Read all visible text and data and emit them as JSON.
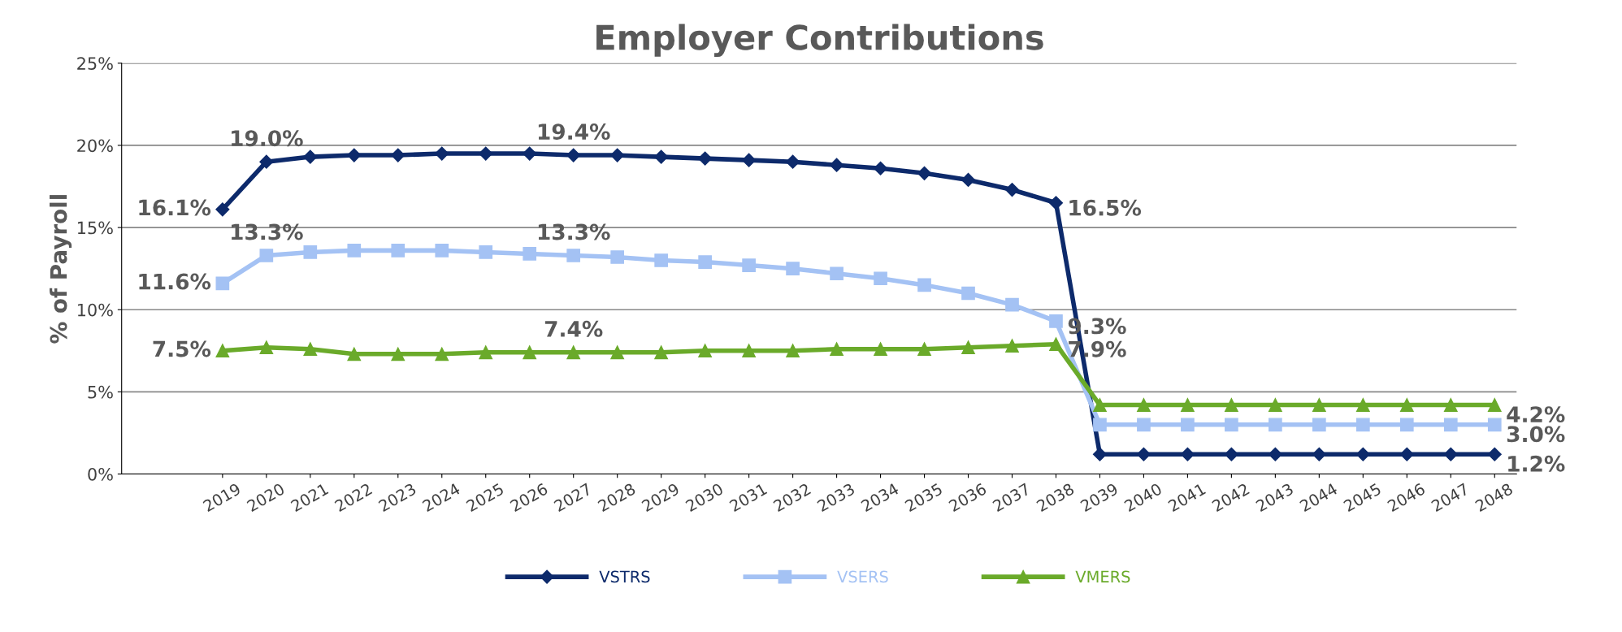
{
  "chart_data": {
    "type": "line",
    "title": "Employer Contributions",
    "ylabel": "% of Payroll",
    "categories": [
      "2019",
      "2020",
      "2021",
      "2022",
      "2023",
      "2024",
      "2025",
      "2026",
      "2027",
      "2028",
      "2029",
      "2030",
      "2031",
      "2032",
      "2033",
      "2034",
      "2035",
      "2036",
      "2037",
      "2038",
      "2039",
      "2040",
      "2041",
      "2042",
      "2043",
      "2044",
      "2045",
      "2046",
      "2047",
      "2048"
    ],
    "series": [
      {
        "name": "VSTRS",
        "color": "#0d2a6b",
        "marker": "diamond",
        "values": [
          16.1,
          19.0,
          19.3,
          19.4,
          19.4,
          19.5,
          19.5,
          19.5,
          19.4,
          19.4,
          19.3,
          19.2,
          19.1,
          19.0,
          18.8,
          18.6,
          18.3,
          17.9,
          17.3,
          16.5,
          1.2,
          1.2,
          1.2,
          1.2,
          1.2,
          1.2,
          1.2,
          1.2,
          1.2,
          1.2
        ],
        "value_labels": [
          "16.1%",
          "19.0%",
          null,
          null,
          null,
          null,
          null,
          null,
          "19.4%",
          null,
          null,
          null,
          null,
          null,
          null,
          null,
          null,
          null,
          null,
          "16.5%",
          null,
          null,
          null,
          null,
          null,
          null,
          null,
          null,
          null,
          "1.2%"
        ]
      },
      {
        "name": "VSERS",
        "color": "#a4c2f4",
        "marker": "square",
        "values": [
          11.6,
          13.3,
          13.5,
          13.6,
          13.6,
          13.6,
          13.5,
          13.4,
          13.3,
          13.2,
          13.0,
          12.9,
          12.7,
          12.5,
          12.2,
          11.9,
          11.5,
          11.0,
          10.3,
          9.3,
          3.0,
          3.0,
          3.0,
          3.0,
          3.0,
          3.0,
          3.0,
          3.0,
          3.0,
          3.0
        ],
        "value_labels": [
          "11.6%",
          "13.3%",
          null,
          null,
          null,
          null,
          null,
          null,
          "13.3%",
          null,
          null,
          null,
          null,
          null,
          null,
          null,
          null,
          null,
          null,
          "9.3%",
          null,
          null,
          null,
          null,
          null,
          null,
          null,
          null,
          null,
          "3.0%"
        ]
      },
      {
        "name": "VMERS",
        "color": "#6aaa2a",
        "marker": "triangle",
        "values": [
          7.5,
          7.7,
          7.6,
          7.3,
          7.3,
          7.3,
          7.4,
          7.4,
          7.4,
          7.4,
          7.4,
          7.5,
          7.5,
          7.5,
          7.6,
          7.6,
          7.6,
          7.7,
          7.8,
          7.9,
          4.2,
          4.2,
          4.2,
          4.2,
          4.2,
          4.2,
          4.2,
          4.2,
          4.2,
          4.2
        ],
        "value_labels": [
          "7.5%",
          null,
          null,
          null,
          null,
          null,
          null,
          null,
          "7.4%",
          null,
          null,
          null,
          null,
          null,
          null,
          null,
          null,
          null,
          null,
          "7.9%",
          null,
          null,
          null,
          null,
          null,
          null,
          null,
          null,
          null,
          "4.2%"
        ]
      }
    ],
    "ylim": [
      0,
      25
    ],
    "yticks": [
      {
        "value": 0,
        "label": "0%"
      },
      {
        "value": 5,
        "label": "5%"
      },
      {
        "value": 10,
        "label": "10%"
      },
      {
        "value": 15,
        "label": "15%"
      },
      {
        "value": 20,
        "label": "20%"
      },
      {
        "value": 25,
        "label": "25%"
      }
    ],
    "grid": "y",
    "legend": "bottom",
    "line_style": "solid"
  }
}
